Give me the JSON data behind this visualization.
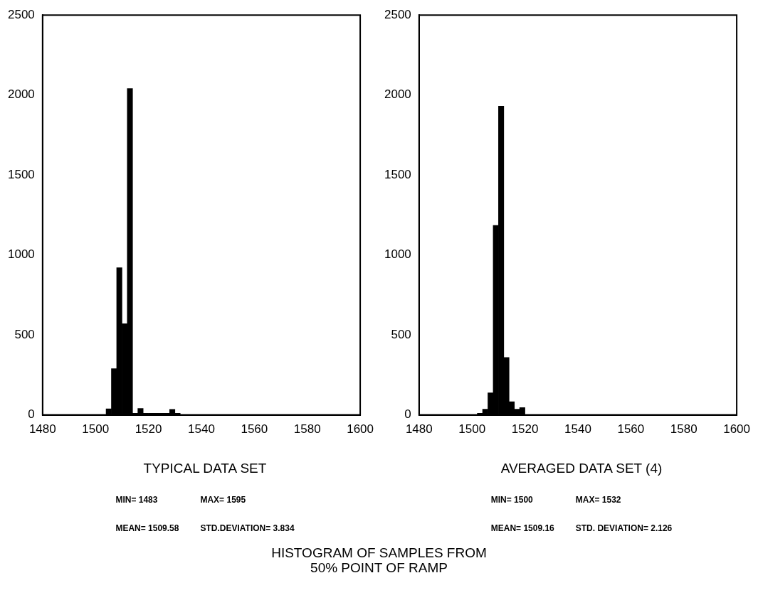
{
  "chart_data": [
    {
      "type": "histogram",
      "xlabel": "TYPICAL DATA SET",
      "bins": [
        1480,
        1482,
        1484,
        1486,
        1488,
        1490,
        1492,
        1494,
        1496,
        1498,
        1500,
        1502,
        1504,
        1506,
        1508,
        1510,
        1512,
        1514,
        1516,
        1518,
        1520,
        1522,
        1524,
        1526,
        1528,
        1530,
        1532,
        1534,
        1536,
        1538,
        1540,
        1542,
        1544,
        1546,
        1548,
        1550,
        1552,
        1554,
        1556,
        1558,
        1560,
        1562,
        1564,
        1566,
        1568,
        1570,
        1572,
        1574,
        1576,
        1578,
        1580,
        1582,
        1584,
        1586,
        1588,
        1590,
        1592,
        1594,
        1596,
        1598,
        1600
      ],
      "values": [
        0,
        0,
        0,
        0,
        0,
        0,
        0,
        0,
        0,
        0,
        null,
        null,
        38,
        289,
        920,
        570,
        2040,
        10,
        40,
        10,
        10,
        10,
        10,
        10,
        35,
        10,
        0,
        0,
        0,
        0,
        0,
        0,
        0,
        0,
        0,
        0,
        0,
        0,
        0,
        0,
        0,
        0,
        0,
        0,
        0,
        0,
        0,
        0,
        0,
        0,
        0,
        0,
        0,
        0,
        0,
        0,
        0,
        0,
        0,
        0
      ],
      "color": "#000000",
      "xlim": [
        1480,
        1600
      ],
      "xticks": [
        1480,
        1500,
        1520,
        1540,
        1560,
        1580,
        1600
      ],
      "ylim": [
        0,
        2500
      ],
      "yticks": [
        0,
        500,
        1000,
        1500,
        2000,
        2500
      ],
      "annotations": [
        "MIN= 1483",
        "MAX= 1595",
        "MEAN= 1509.58",
        "STD.DEVIATION= 3.834",
        "HISTOGRAM OF SAMPLES FROM\n50% POINT OF RAMP"
      ]
    },
    {
      "type": "histogram",
      "xlabel": "AVERAGED DATA SET (4)",
      "bins": [
        1480,
        1482,
        1484,
        1486,
        1488,
        1490,
        1492,
        1494,
        1496,
        1498,
        1500,
        1502,
        1504,
        1506,
        1508,
        1510,
        1512,
        1514,
        1516,
        1518,
        1520,
        1522,
        1524,
        1526,
        1528,
        1530,
        1532,
        1534,
        1536,
        1538,
        1540,
        1542,
        1544,
        1546,
        1548,
        1550,
        1552,
        1554,
        1556,
        1558,
        1560,
        1562,
        1564,
        1566,
        1568,
        1570,
        1572,
        1574,
        1576,
        1578,
        1580,
        1582,
        1584,
        1586,
        1588,
        1590,
        1592,
        1594,
        1596,
        1598,
        1600
      ],
      "values": [
        0,
        0,
        0,
        0,
        0,
        0,
        0,
        0,
        0,
        0,
        null,
        10,
        36,
        138,
        1185,
        1930,
        359,
        82,
        36,
        46,
        0,
        0,
        0,
        0,
        0,
        0,
        0,
        0,
        0,
        0,
        0,
        0,
        0,
        0,
        0,
        0,
        0,
        0,
        0,
        0,
        0,
        0,
        0,
        0,
        0,
        0,
        0,
        0,
        0,
        0,
        0,
        0,
        0,
        0,
        0,
        0,
        0,
        0,
        0,
        0
      ],
      "color": "#000000",
      "xlim": [
        1480,
        1600
      ],
      "xticks": [
        1480,
        1500,
        1520,
        1540,
        1560,
        1580,
        1600
      ],
      "ylim": [
        0,
        2500
      ],
      "yticks": [
        0,
        500,
        1000,
        1500,
        2000,
        2500
      ],
      "annotations": [
        "MIN= 1500",
        "MAX= 1532",
        "MEAN= 1509.16",
        "STD. DEVIATION= 2.126"
      ]
    }
  ]
}
